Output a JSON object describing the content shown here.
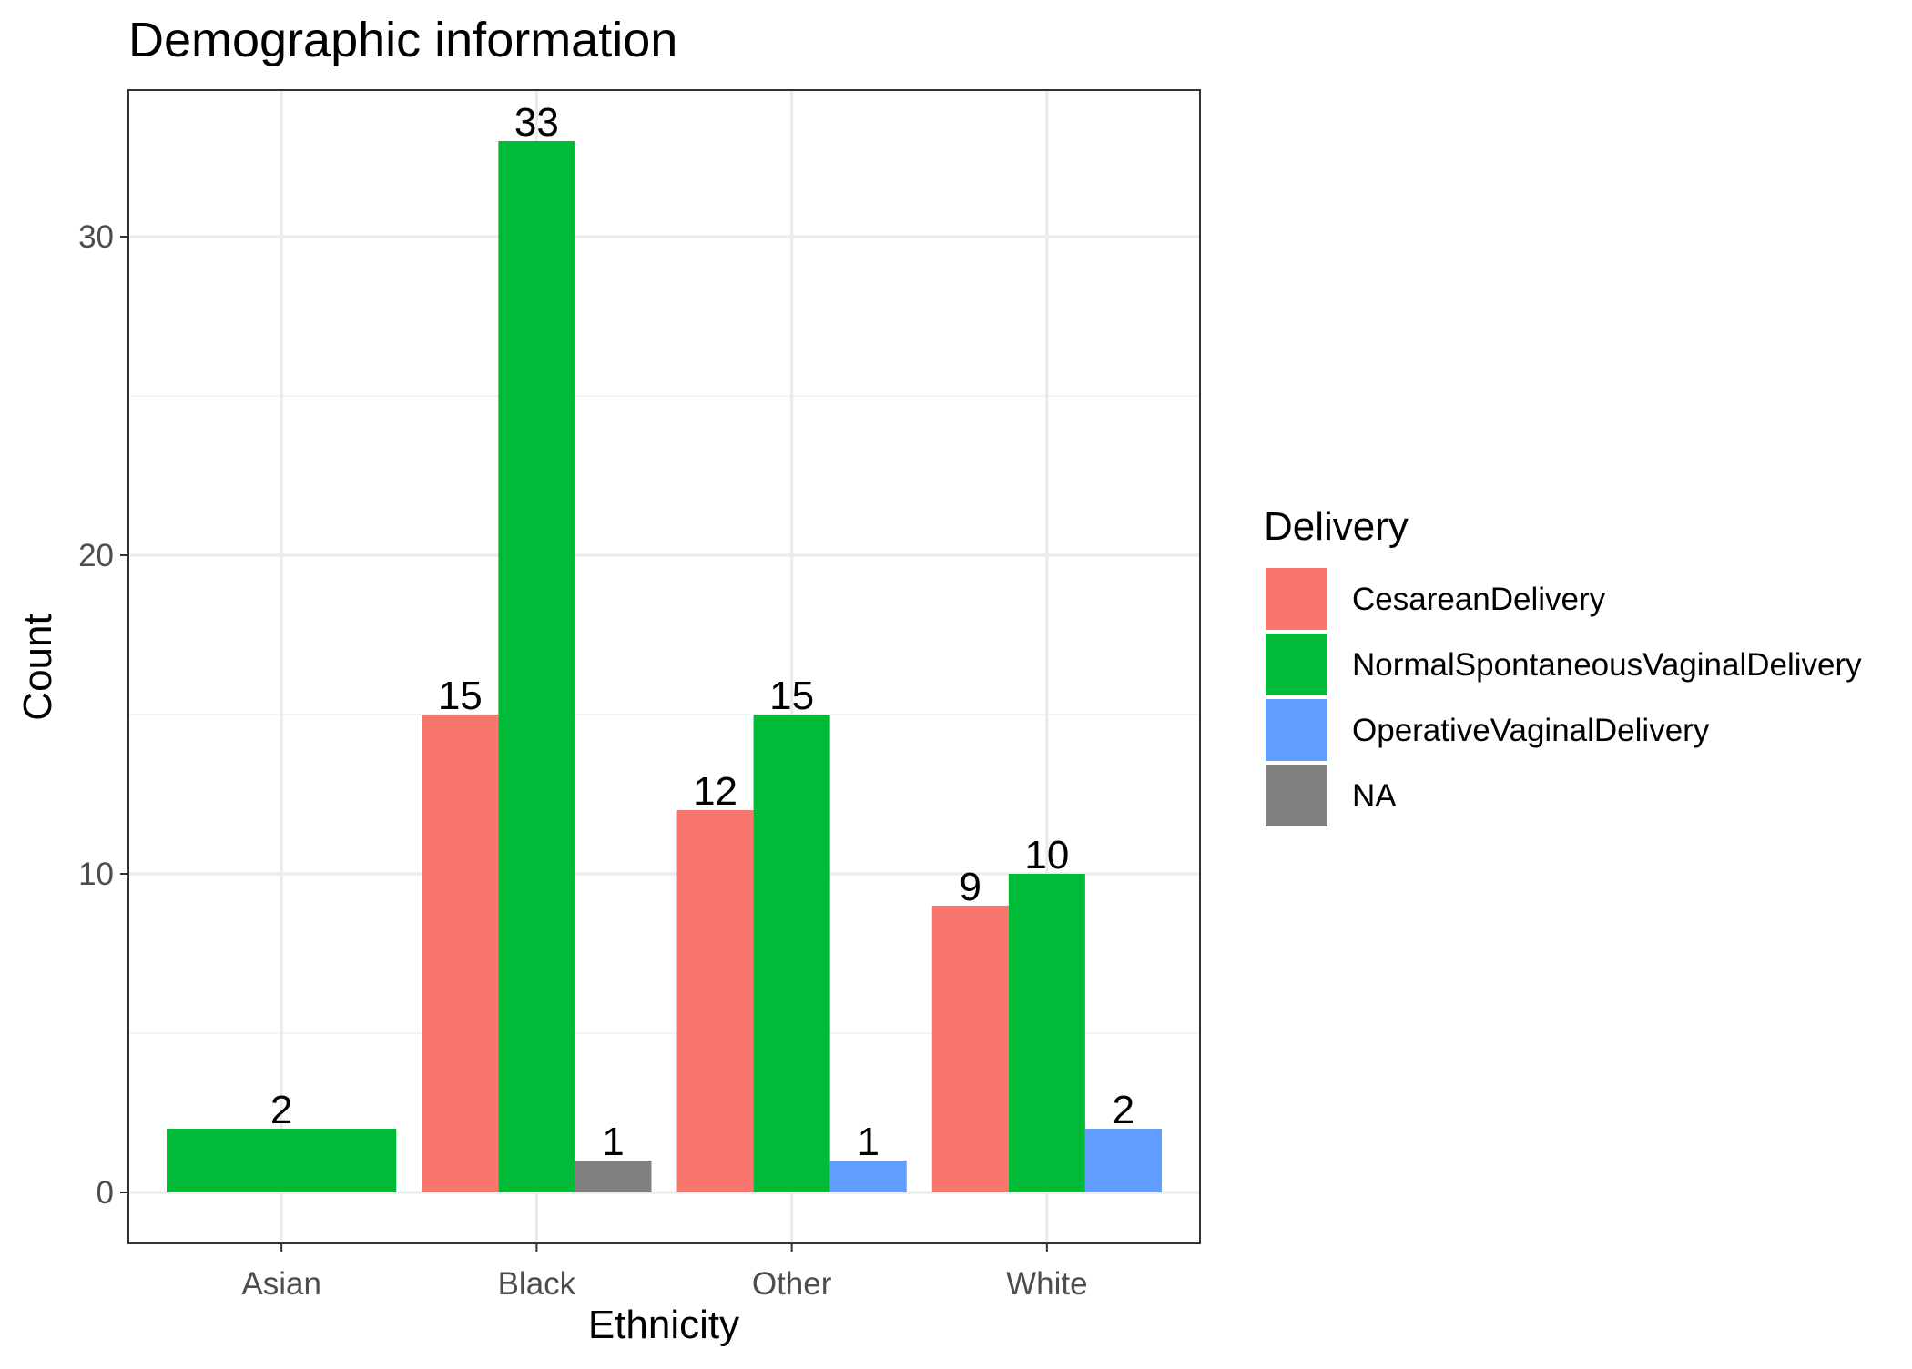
{
  "chart_data": {
    "type": "bar",
    "title": "Demographic information",
    "xlabel": "Ethnicity",
    "ylabel": "Count",
    "categories": [
      "Asian",
      "Black",
      "Other",
      "White"
    ],
    "ylim": [
      -1.6,
      34.6
    ],
    "yticks": [
      0,
      10,
      20,
      30
    ],
    "y_minor_ticks": [
      5,
      15,
      25
    ],
    "grid": true,
    "legend": {
      "title": "Delivery",
      "position": "right",
      "entries": [
        {
          "name": "CesareanDelivery",
          "color": "#F8766D"
        },
        {
          "name": "NormalSpontaneousVaginalDelivery",
          "color": "#00BA38"
        },
        {
          "name": "OperativeVaginalDelivery",
          "color": "#619CFF"
        },
        {
          "name": "NA",
          "color": "#808080"
        }
      ]
    },
    "bars": [
      {
        "category": "Asian",
        "series": "NormalSpontaneousVaginalDelivery",
        "value": 2,
        "label": "2"
      },
      {
        "category": "Black",
        "series": "CesareanDelivery",
        "value": 15,
        "label": "15"
      },
      {
        "category": "Black",
        "series": "NormalSpontaneousVaginalDelivery",
        "value": 33,
        "label": "33"
      },
      {
        "category": "Black",
        "series": "NA",
        "value": 1,
        "label": "1"
      },
      {
        "category": "Other",
        "series": "CesareanDelivery",
        "value": 12,
        "label": "12"
      },
      {
        "category": "Other",
        "series": "NormalSpontaneousVaginalDelivery",
        "value": 15,
        "label": "15"
      },
      {
        "category": "Other",
        "series": "OperativeVaginalDelivery",
        "value": 1,
        "label": "1"
      },
      {
        "category": "White",
        "series": "CesareanDelivery",
        "value": 9,
        "label": "9"
      },
      {
        "category": "White",
        "series": "NormalSpontaneousVaginalDelivery",
        "value": 10,
        "label": "10"
      },
      {
        "category": "White",
        "series": "OperativeVaginalDelivery",
        "value": 2,
        "label": "2"
      }
    ]
  }
}
